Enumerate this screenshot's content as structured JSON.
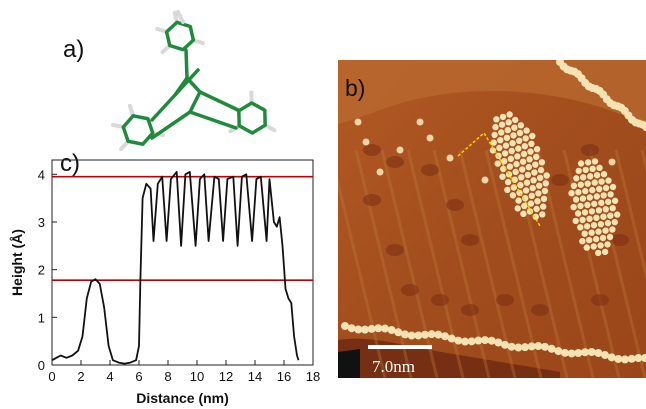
{
  "panels": {
    "a": "a)",
    "b": "b)",
    "c": "c)"
  },
  "stm": {
    "scale_bar_label": "7.0nm",
    "colors": {
      "substrate": "#a8511f",
      "substrate_dark": "#7a2e12",
      "molecule": "#f5e3b3",
      "scan_line": "#ffd400"
    }
  },
  "molecule_colors": {
    "carbon": "#1f8a3c",
    "hydrogen": "#d9d9d9"
  },
  "chart_data": {
    "type": "line",
    "xlabel": "Distance (nm)",
    "ylabel": "Height (Å)",
    "xlim": [
      0,
      18
    ],
    "ylim": [
      0,
      4.3
    ],
    "xticks": [
      0,
      2,
      4,
      6,
      8,
      10,
      12,
      14,
      16,
      18
    ],
    "yticks": [
      0,
      1,
      2,
      3,
      4
    ],
    "reference_lines": [
      {
        "y": 3.95,
        "color": "#c00000"
      },
      {
        "y": 1.78,
        "color": "#c00000"
      }
    ],
    "series": [
      {
        "color": "#111111",
        "x": [
          0,
          0.3,
          0.6,
          1.0,
          1.4,
          1.8,
          2.1,
          2.4,
          2.7,
          3.0,
          3.3,
          3.6,
          3.9,
          4.2,
          4.6,
          5.0,
          5.4,
          5.8,
          6.0,
          6.1,
          6.25,
          6.5,
          6.8,
          7.0,
          7.3,
          7.6,
          7.9,
          8.2,
          8.6,
          8.9,
          9.2,
          9.5,
          9.9,
          10.2,
          10.5,
          10.8,
          11.2,
          11.5,
          11.8,
          12.1,
          12.5,
          12.8,
          13.1,
          13.4,
          13.8,
          14.1,
          14.4,
          14.8,
          15.0,
          15.3,
          15.5,
          15.7,
          15.9,
          16.1,
          16.3,
          16.5,
          16.7,
          16.9,
          17.0
        ],
        "y": [
          0.1,
          0.15,
          0.2,
          0.15,
          0.2,
          0.3,
          0.6,
          1.4,
          1.75,
          1.8,
          1.7,
          1.2,
          0.4,
          0.1,
          0.05,
          0.03,
          0.05,
          0.1,
          0.4,
          1.8,
          3.5,
          3.8,
          3.7,
          2.6,
          3.8,
          3.95,
          2.6,
          3.9,
          4.05,
          2.5,
          4.0,
          4.05,
          2.5,
          3.9,
          4.0,
          2.6,
          3.95,
          3.9,
          2.6,
          3.9,
          3.95,
          2.5,
          3.95,
          4.0,
          2.6,
          3.9,
          3.95,
          2.6,
          3.9,
          3.0,
          2.9,
          3.1,
          2.5,
          1.6,
          1.4,
          1.3,
          0.6,
          0.2,
          0.1
        ]
      }
    ]
  }
}
